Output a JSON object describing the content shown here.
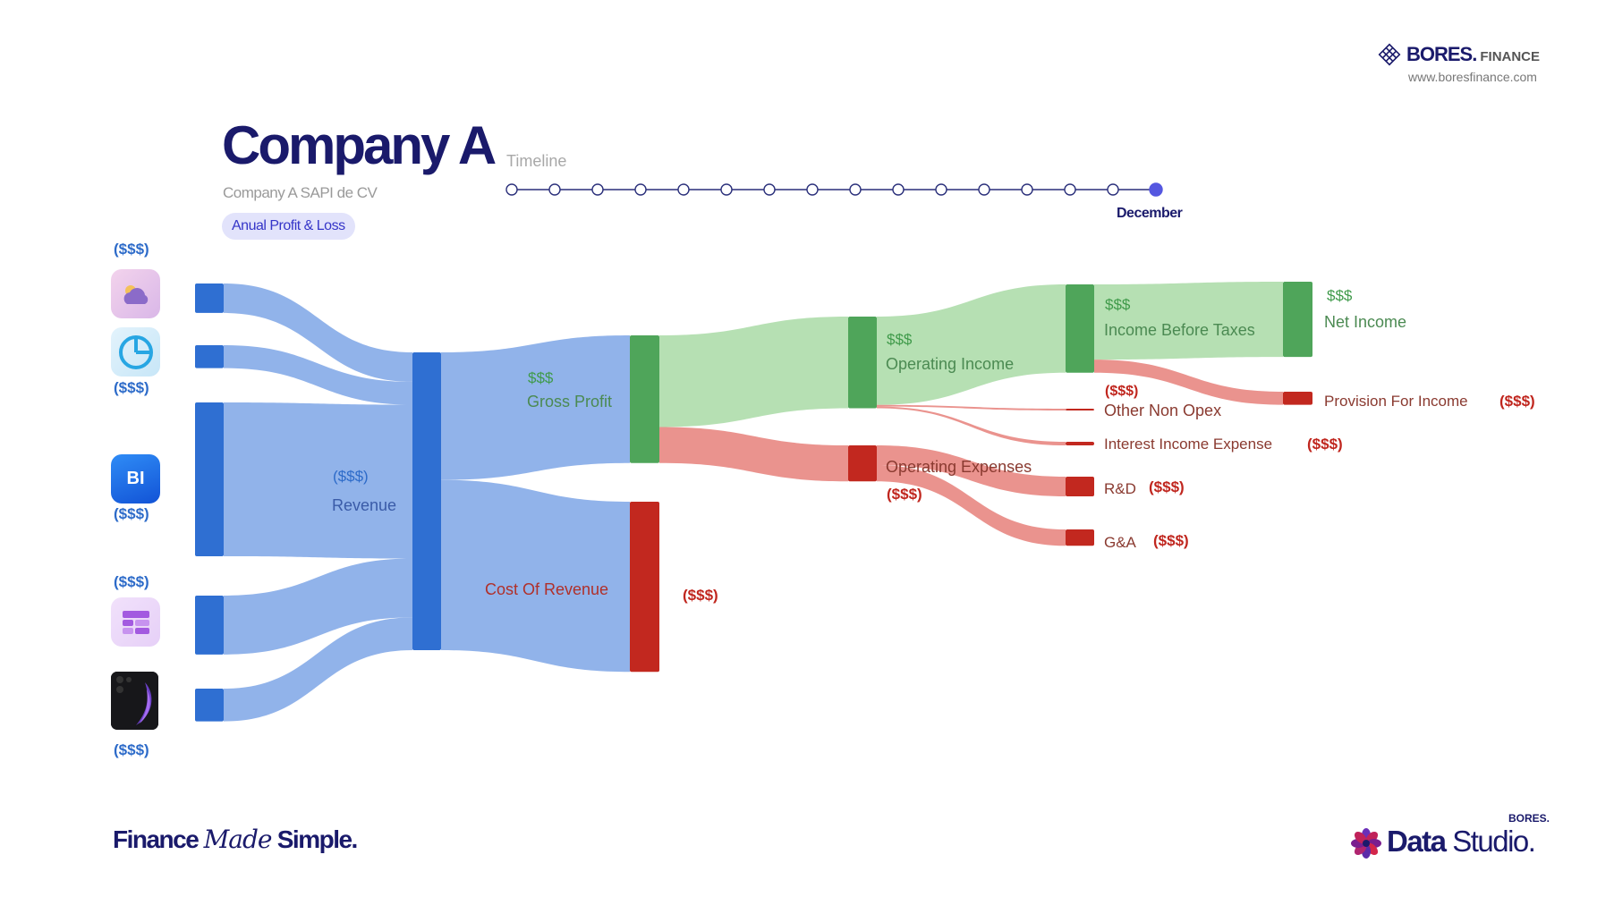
{
  "header": {
    "title": "Company A",
    "subtitle": "Company A SAPI de CV",
    "report_pill": "Anual Profit & Loss"
  },
  "brand": {
    "name": "BORES.",
    "suffix": "FINANCE",
    "url": "www.boresfinance.com",
    "logo_icon": "diamond-grid-icon"
  },
  "timeline": {
    "label": "Timeline",
    "points": 16,
    "selected_index": 15,
    "selected_label": "December"
  },
  "left_sources": [
    {
      "value_label": "($$$)",
      "icon": "weather-cloud-icon"
    },
    {
      "value_label": "($$$)",
      "icon": "pie-chart-icon"
    },
    {
      "value_label": "($$$)",
      "icon": "bi-icon",
      "icon_text": "BI"
    },
    {
      "value_label": "($$$)",
      "icon": "dashboard-layout-icon"
    },
    {
      "value_label": "($$$)",
      "icon": "smartphone-icon"
    }
  ],
  "colors": {
    "revenue": "#2f6fd2",
    "revenue_flow": "#7ea6e6",
    "profit": "#4fa55a",
    "profit_flow": "#a9dba6",
    "cost": "#c2281f",
    "cost_flow": "#e6807a",
    "label_green": "#3f9a4a",
    "label_red": "#c0261e",
    "label_blue": "#2d6bc9"
  },
  "chart_data": {
    "type": "sankey",
    "nodes": [
      {
        "id": "src1"
      },
      {
        "id": "src2"
      },
      {
        "id": "src3"
      },
      {
        "id": "src4"
      },
      {
        "id": "src5"
      },
      {
        "id": "revenue",
        "label": "Revenue",
        "value_label": "($$$)"
      },
      {
        "id": "gross_profit",
        "label": "Gross Profit",
        "value_label": "$$$"
      },
      {
        "id": "cost_of_revenue",
        "label": "Cost Of Revenue",
        "value_label": "($$$)"
      },
      {
        "id": "operating_income",
        "label": "Operating Income",
        "value_label": "$$$"
      },
      {
        "id": "operating_expenses",
        "label": "Operating Expenses",
        "value_label": "($$$)"
      },
      {
        "id": "income_before_taxes",
        "label": "Income Before Taxes",
        "value_label": "$$$"
      },
      {
        "id": "other_non_opex",
        "label": "Other Non Opex",
        "value_label": "($$$)"
      },
      {
        "id": "interest_income_expense",
        "label": "Interest Income Expense",
        "value_label": "($$$)"
      },
      {
        "id": "rd",
        "label": "R&D",
        "value_label": "($$$)"
      },
      {
        "id": "ga",
        "label": "G&A",
        "value_label": "($$$)"
      },
      {
        "id": "net_income",
        "label": "Net Income",
        "value_label": "$$$"
      },
      {
        "id": "provision_for_income",
        "label": "Provision For Income",
        "value_label": "($$$)"
      }
    ],
    "links": [
      {
        "source": "src1",
        "target": "revenue",
        "value": 9
      },
      {
        "source": "src2",
        "target": "revenue",
        "value": 7
      },
      {
        "source": "src3",
        "target": "revenue",
        "value": 47
      },
      {
        "source": "src4",
        "target": "revenue",
        "value": 18
      },
      {
        "source": "src5",
        "target": "revenue",
        "value": 10
      },
      {
        "source": "revenue",
        "target": "gross_profit",
        "value": 39
      },
      {
        "source": "revenue",
        "target": "cost_of_revenue",
        "value": 52
      },
      {
        "source": "gross_profit",
        "target": "operating_income",
        "value": 28
      },
      {
        "source": "gross_profit",
        "target": "operating_expenses",
        "value": 11
      },
      {
        "source": "operating_income",
        "target": "income_before_taxes",
        "value": 27
      },
      {
        "source": "operating_income",
        "target": "other_non_opex",
        "value": 0.5
      },
      {
        "source": "operating_income",
        "target": "interest_income_expense",
        "value": 0.5
      },
      {
        "source": "operating_expenses",
        "target": "rd",
        "value": 6
      },
      {
        "source": "operating_expenses",
        "target": "ga",
        "value": 5
      },
      {
        "source": "income_before_taxes",
        "target": "net_income",
        "value": 23
      },
      {
        "source": "income_before_taxes",
        "target": "provision_for_income",
        "value": 4
      }
    ]
  },
  "footer": {
    "tagline_pre": "Finance",
    "tagline_made": "Made",
    "tagline_post": "Simple.",
    "studio_brand": "BORES.",
    "studio_word_a": "Data",
    "studio_word_b": "Studio.",
    "studio_icon": "flower-icon"
  }
}
